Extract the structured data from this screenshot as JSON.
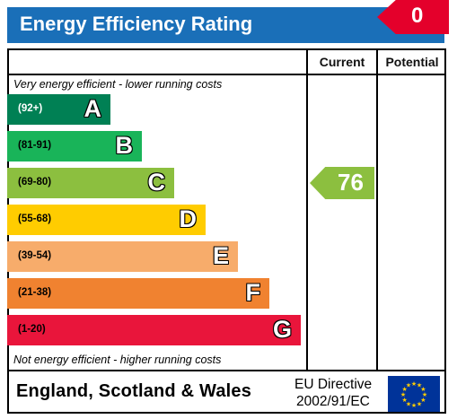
{
  "header": {
    "title": "Energy Efficiency Rating",
    "flag_value": "0"
  },
  "columns": {
    "current": "Current",
    "potential": "Potential"
  },
  "notes": {
    "top": "Very energy efficient - lower running costs",
    "bottom": "Not energy efficient - higher running costs"
  },
  "footer": {
    "region": "England, Scotland & Wales",
    "directive_line1": "EU Directive",
    "directive_line2": "2002/91/EC"
  },
  "colors": {
    "header": "#1a6fb8",
    "flag": "#e4002b",
    "current": "#8cbf3f"
  },
  "chart_data": {
    "type": "bar",
    "title": "Energy Efficiency Rating",
    "categories": [
      "A",
      "B",
      "C",
      "D",
      "E",
      "F",
      "G"
    ],
    "bands": [
      {
        "letter": "A",
        "range": "(92+)",
        "min": 92,
        "max": 100,
        "color": "#008054",
        "text_color": "#ffffff"
      },
      {
        "letter": "B",
        "range": "(81-91)",
        "min": 81,
        "max": 91,
        "color": "#19b459",
        "text_color": "#000000"
      },
      {
        "letter": "C",
        "range": "(69-80)",
        "min": 69,
        "max": 80,
        "color": "#8cbf3f",
        "text_color": "#000000"
      },
      {
        "letter": "D",
        "range": "(55-68)",
        "min": 55,
        "max": 68,
        "color": "#ffcc00",
        "text_color": "#000000"
      },
      {
        "letter": "E",
        "range": "(39-54)",
        "min": 39,
        "max": 54,
        "color": "#f7ac6b",
        "text_color": "#000000"
      },
      {
        "letter": "F",
        "range": "(21-38)",
        "min": 21,
        "max": 38,
        "color": "#f08230",
        "text_color": "#000000"
      },
      {
        "letter": "G",
        "range": "(1-20)",
        "min": 1,
        "max": 20,
        "color": "#e9153b",
        "text_color": "#000000"
      }
    ],
    "current": {
      "value": 76,
      "label": "76",
      "band": "C"
    },
    "potential": null
  }
}
